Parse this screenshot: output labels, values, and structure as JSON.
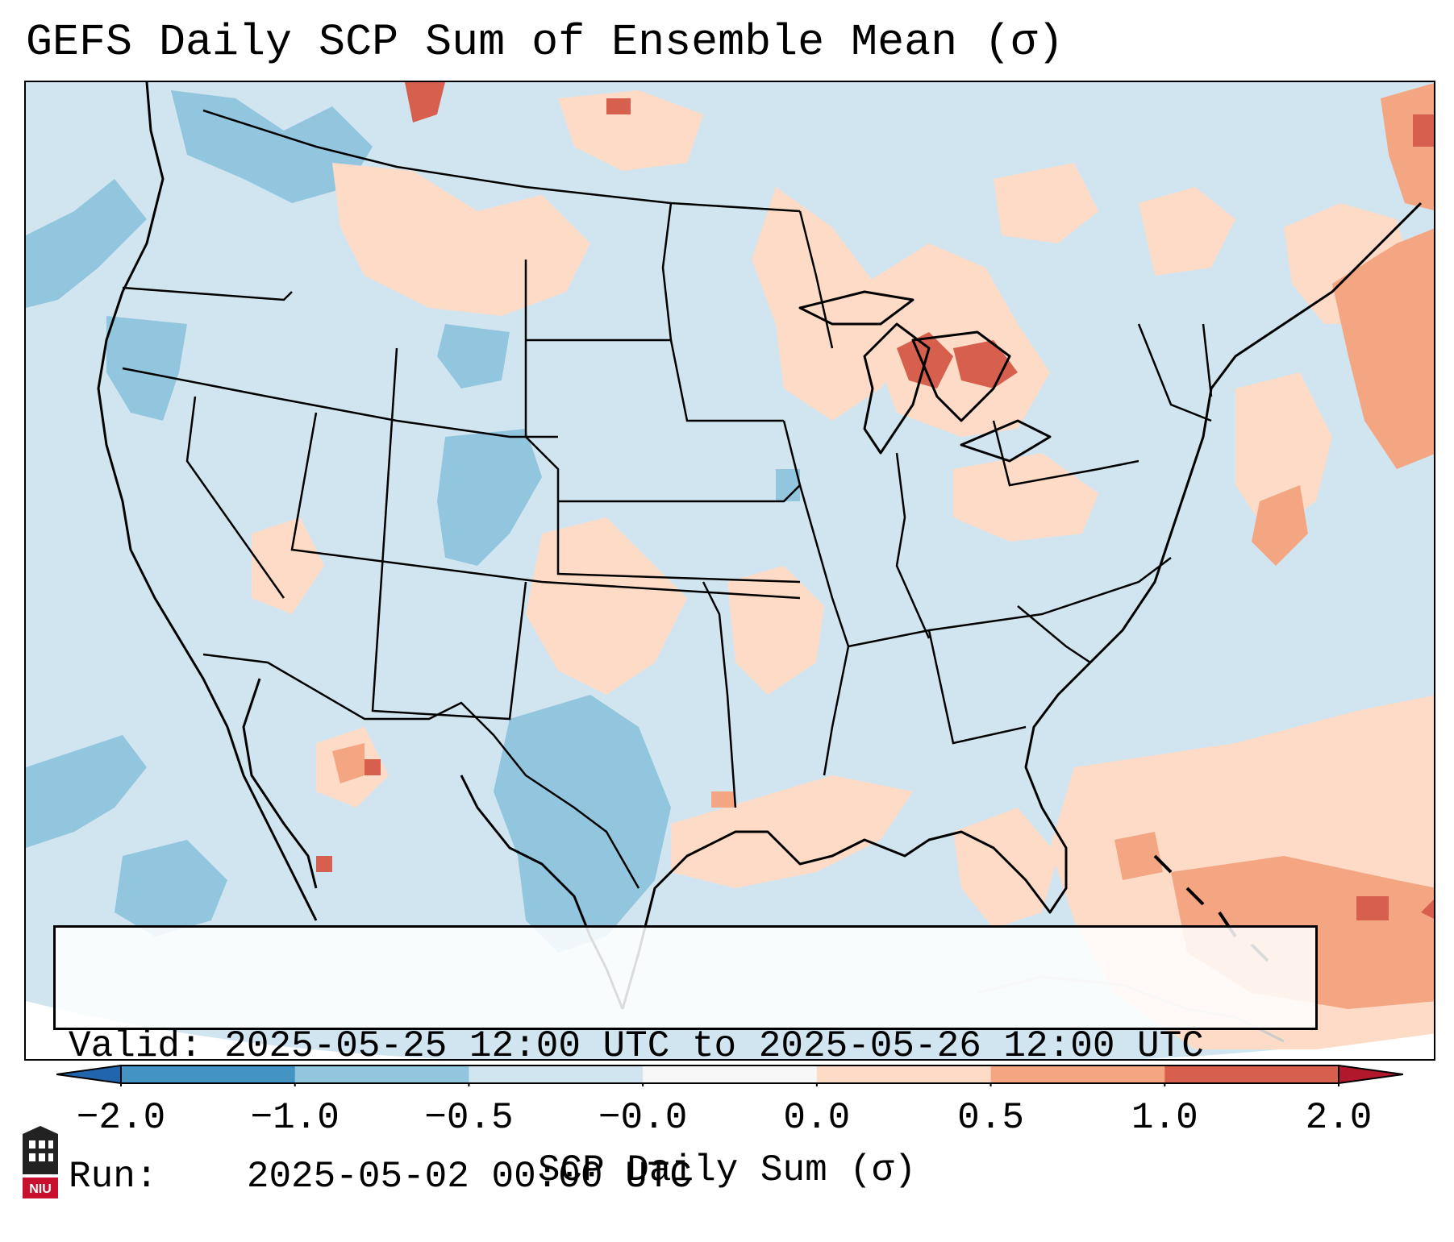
{
  "title": "GEFS Daily SCP Sum of Ensemble Mean (σ)",
  "map": {
    "region": "Contiguous United States",
    "background_color": "#d1e5f0",
    "highlights": [
      {
        "area": "Great Lakes / Michigan",
        "level": "1.0 to 2.0"
      },
      {
        "area": "Northeast coast / New England",
        "level": "0.5 to 1.0"
      },
      {
        "area": "Western Atlantic / Bahamas",
        "level": "0.5 to 1.0"
      },
      {
        "area": "Southwest Texas / northern Mexico",
        "level": "-1.0 to -0.5"
      },
      {
        "area": "Pacific Northwest",
        "level": "-1.0 to -0.5"
      }
    ]
  },
  "info": {
    "valid_label": "Valid:",
    "valid_value": "2025-05-25 12:00 UTC to 2025-05-26 12:00 UTC",
    "run_label": "Run:",
    "run_value": "2025-05-02 00:00 UTC"
  },
  "colorbar": {
    "label": "SCP Daily Sum (σ)",
    "ticks": [
      "−2.0",
      "−1.0",
      "−0.5",
      "−0.0",
      "0.0",
      "0.5",
      "1.0",
      "2.0"
    ],
    "colors": [
      "#4393c3",
      "#92c5de",
      "#d1e5f0",
      "#f7f7f7",
      "#fddbc7",
      "#f4a582",
      "#d6604d"
    ],
    "extend_min_color": "#2166ac",
    "extend_max_color": "#b2182b"
  },
  "logo": {
    "text": "NIU",
    "icon": "university-building-icon"
  }
}
